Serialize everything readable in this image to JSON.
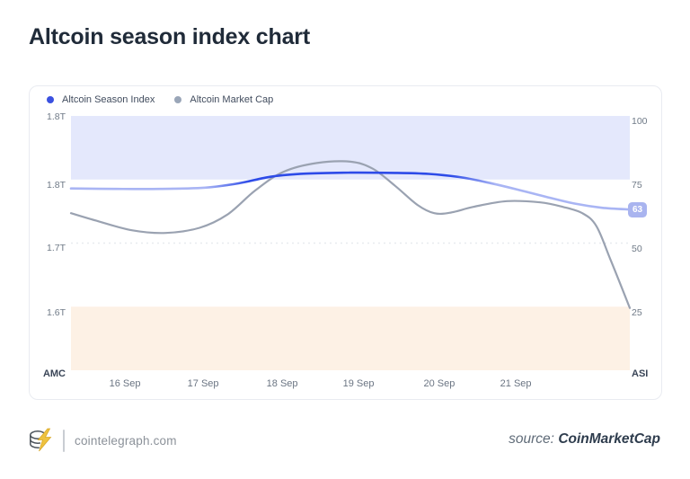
{
  "title": "Altcoin season index chart",
  "chart_data": {
    "type": "line",
    "title": "Altcoin season index chart",
    "x_ticks": [
      {
        "label": "16 Sep",
        "f": 0.0965
      },
      {
        "label": "17 Sep",
        "f": 0.2365
      },
      {
        "label": "18 Sep",
        "f": 0.378
      },
      {
        "label": "19 Sep",
        "f": 0.5145
      },
      {
        "label": "20 Sep",
        "f": 0.659
      },
      {
        "label": "21 Sep",
        "f": 0.796
      }
    ],
    "left_axis": {
      "label": "AMC",
      "ticks": [
        "1.8T",
        "1.8T",
        "1.7T",
        "1.6T"
      ],
      "range": [
        1.5,
        1.9
      ],
      "unit": "T"
    },
    "right_axis": {
      "label": "ASI",
      "ticks": [
        "100",
        "75",
        "50",
        "25"
      ],
      "range": [
        0,
        100
      ]
    },
    "gridlines_right_values": [
      50
    ],
    "bands": [
      {
        "name": "altcoin-season-zone",
        "from": 75,
        "to": 100,
        "color": "#e4e8fc"
      },
      {
        "name": "bitcoin-season-zone",
        "from": 0,
        "to": 25,
        "color": "#fdf1e5"
      }
    ],
    "series": [
      {
        "name": "Altcoin Season Index",
        "axis": "right",
        "color": "#2d4be8",
        "color_faded": "#a9b5f4",
        "dot_color": "#3b51e0",
        "highlight_fraction": [
          0.3,
          0.7
        ],
        "points": [
          [
            0,
            71.5
          ],
          [
            0.08,
            71.3
          ],
          [
            0.16,
            71.3
          ],
          [
            0.24,
            71.8
          ],
          [
            0.3,
            73.5
          ],
          [
            0.36,
            76.2
          ],
          [
            0.42,
            77.3
          ],
          [
            0.5,
            77.7
          ],
          [
            0.58,
            77.6
          ],
          [
            0.64,
            77.2
          ],
          [
            0.7,
            75.8
          ],
          [
            0.75,
            73.6
          ],
          [
            0.8,
            71.0
          ],
          [
            0.85,
            68.2
          ],
          [
            0.9,
            65.6
          ],
          [
            0.95,
            63.9
          ],
          [
            1.0,
            63.2
          ]
        ]
      },
      {
        "name": "Altcoin Market Cap",
        "axis": "left",
        "color": "#9aa2b1",
        "dot_color": "#9aa6b8",
        "points": [
          [
            0,
            1.747
          ],
          [
            0.05,
            1.734
          ],
          [
            0.11,
            1.72
          ],
          [
            0.17,
            1.716
          ],
          [
            0.23,
            1.724
          ],
          [
            0.28,
            1.745
          ],
          [
            0.33,
            1.783
          ],
          [
            0.38,
            1.812
          ],
          [
            0.44,
            1.826
          ],
          [
            0.5,
            1.828
          ],
          [
            0.54,
            1.817
          ],
          [
            0.58,
            1.79
          ],
          [
            0.62,
            1.76
          ],
          [
            0.65,
            1.747
          ],
          [
            0.68,
            1.748
          ],
          [
            0.72,
            1.757
          ],
          [
            0.78,
            1.766
          ],
          [
            0.84,
            1.764
          ],
          [
            0.88,
            1.757
          ],
          [
            0.915,
            1.747
          ],
          [
            0.94,
            1.727
          ],
          [
            0.965,
            1.675
          ],
          [
            1.0,
            1.598
          ]
        ]
      }
    ],
    "current_value": "63"
  },
  "footer": {
    "site": "cointelegraph.com",
    "source_prefix": "source:",
    "source_name": "CoinMarketCap"
  }
}
